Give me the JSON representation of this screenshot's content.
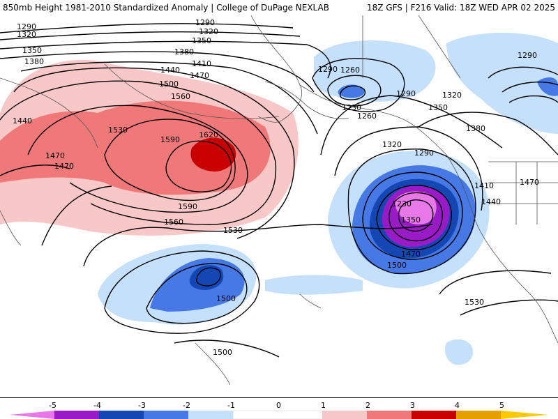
{
  "header": {
    "title": "850mb Height 1981-2010 Standardized Anomaly | College of DuPage NEXLAB",
    "run": "18Z GFS | F216 Valid: 18Z WED APR 02 2025"
  },
  "colors": {
    "anom_neg5": "#e878e8",
    "anom_neg4": "#9a1ac8",
    "anom_neg3": "#1446b4",
    "anom_neg2": "#4678e6",
    "anom_neg1": "#c4e0fa",
    "anom_pos1": "#f8c8c8",
    "anom_pos2": "#f07878",
    "anom_pos3": "#c80000",
    "anom_pos4": "#e6a000",
    "anom_pos5": "#ffc800"
  },
  "contour_labels": [
    "1290",
    "1320",
    "1350",
    "1380",
    "1410",
    "1440",
    "1470",
    "1500",
    "1530",
    "1560",
    "1590",
    "1620",
    "1260",
    "1230"
  ],
  "legend": {
    "ticks": [
      "-5",
      "-4",
      "-3",
      "-2",
      "-1",
      "0",
      "1",
      "2",
      "3",
      "4",
      "5"
    ]
  }
}
